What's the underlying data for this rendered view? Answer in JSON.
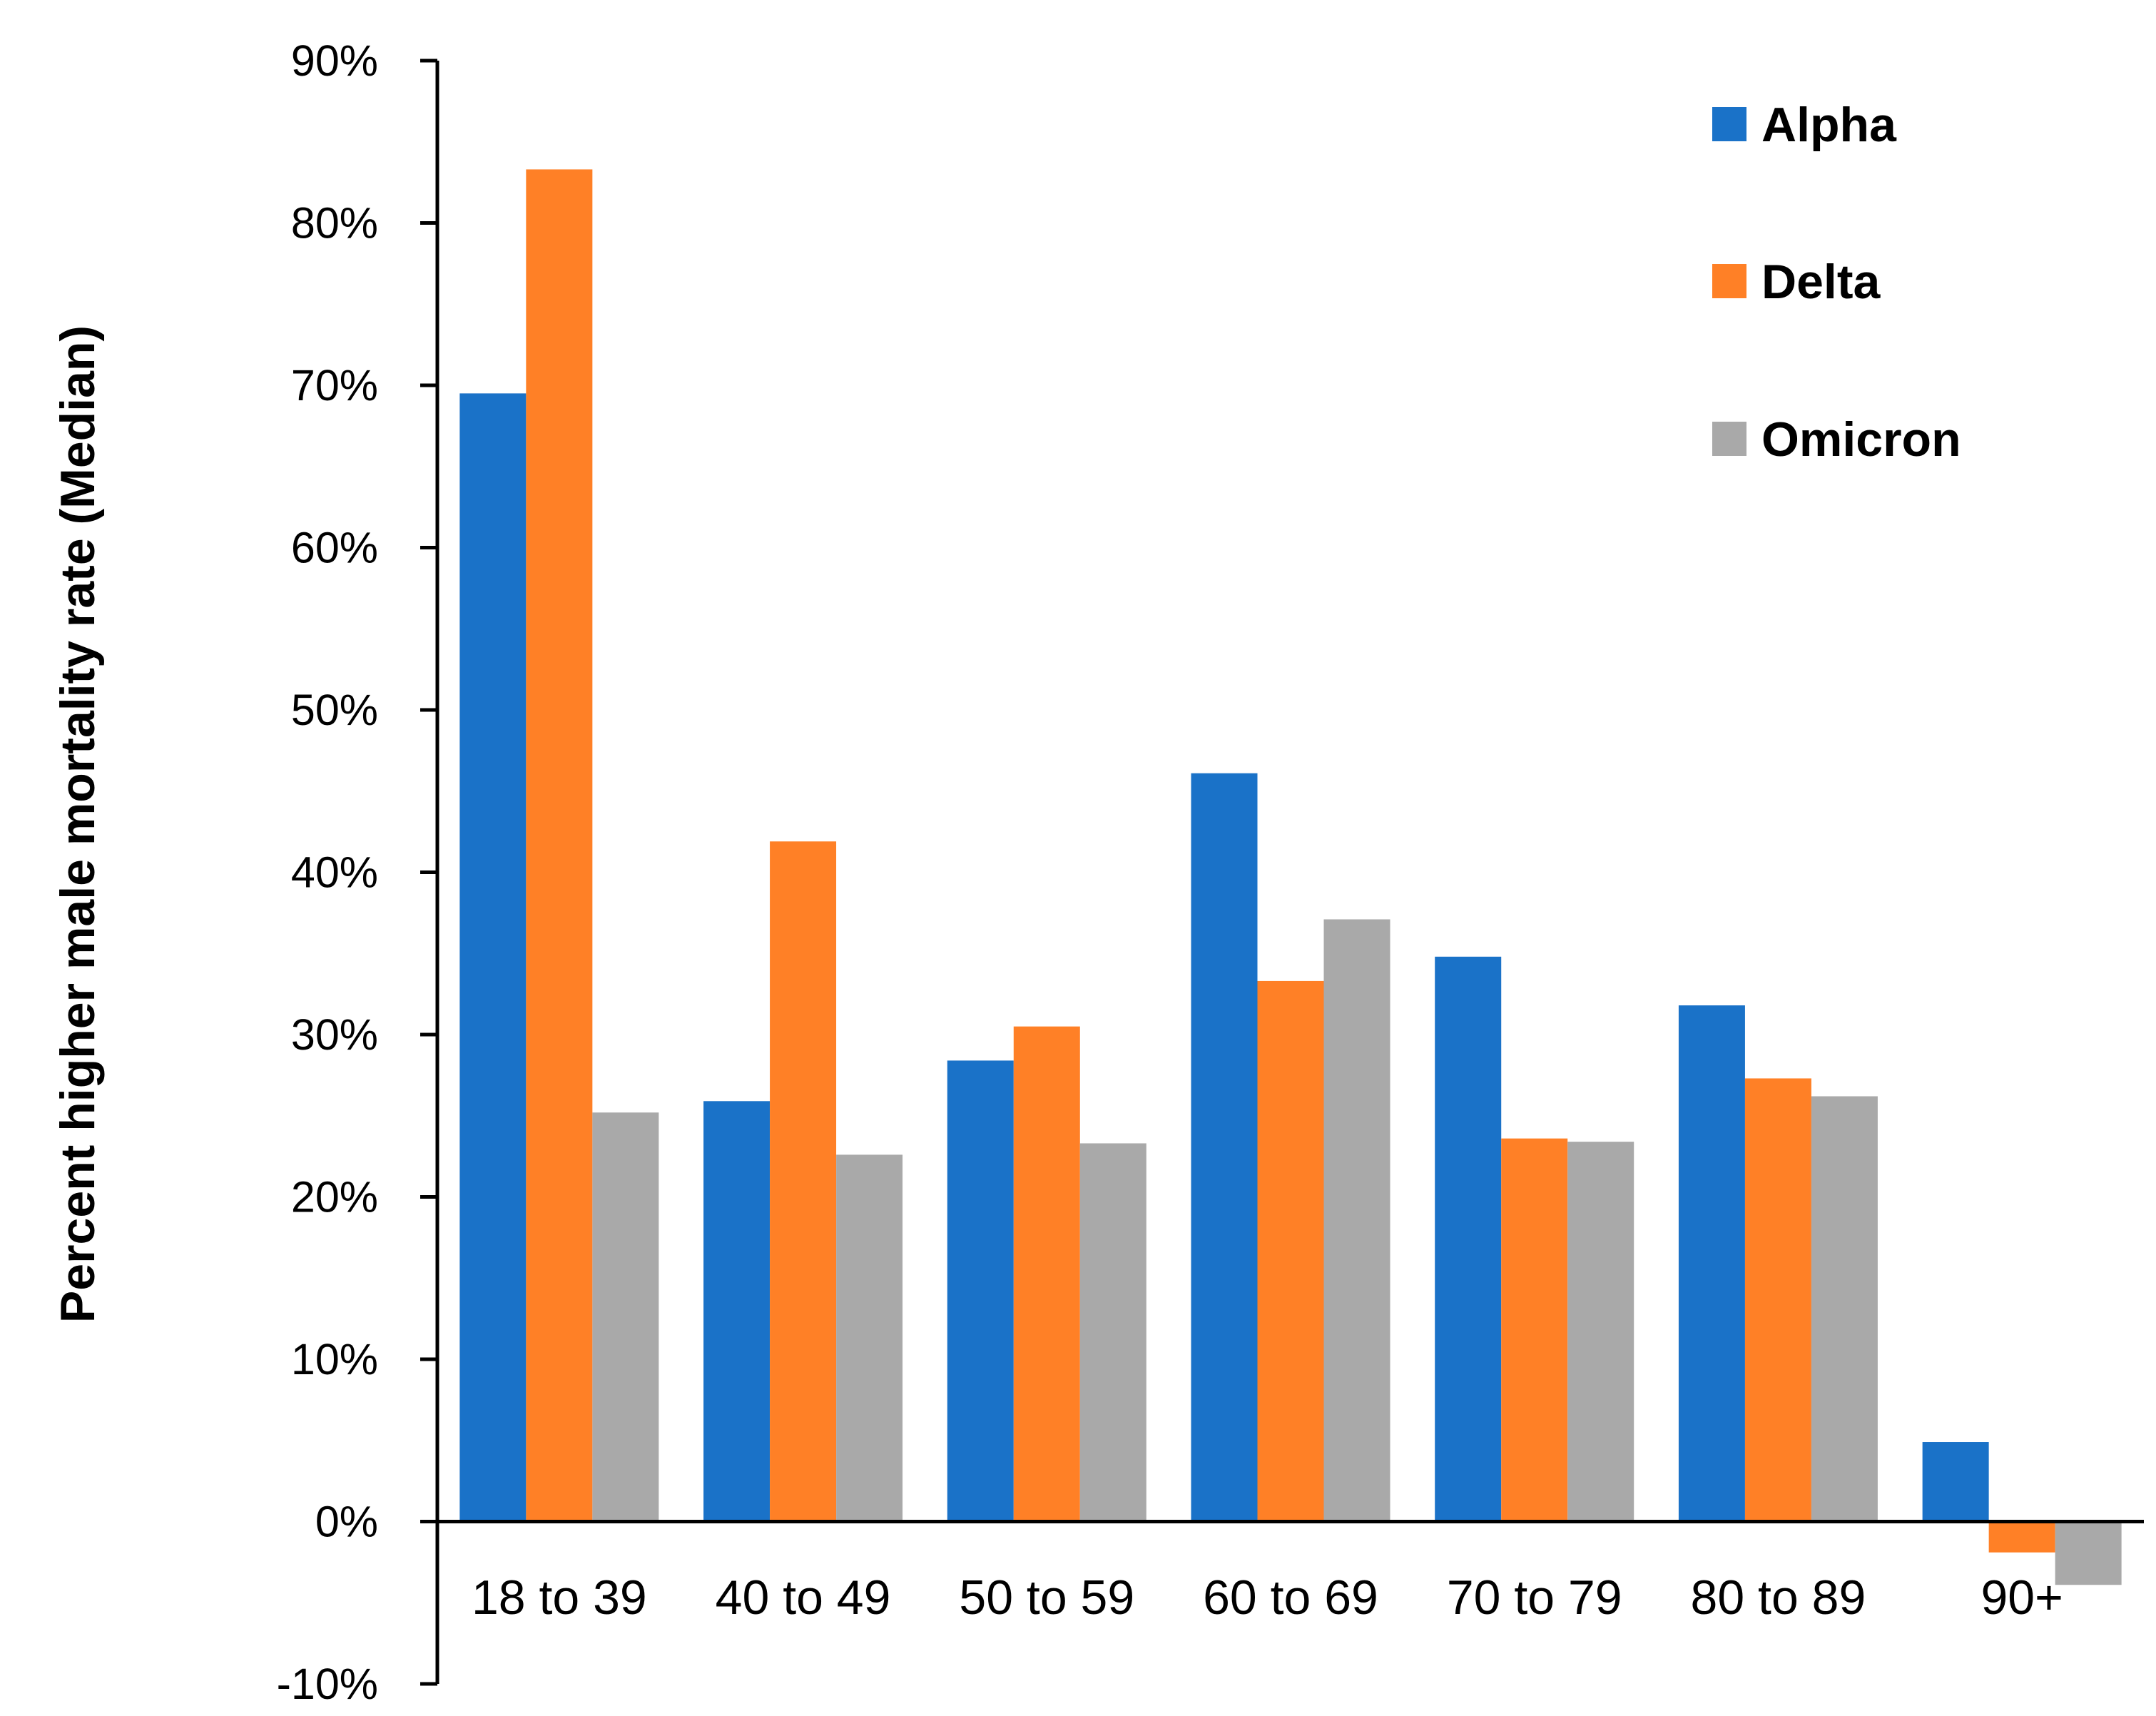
{
  "chart_data": {
    "type": "bar",
    "ylabel": "Percent higher male mortality rate (Median)",
    "xlabel": "",
    "categories": [
      "18 to 39",
      "40 to 49",
      "50 to 59",
      "60 to 69",
      "70 to 79",
      "80 to 89",
      "90+"
    ],
    "series": [
      {
        "name": "Alpha",
        "color": "#1A72C8",
        "values": [
          0.695,
          0.259,
          0.284,
          0.461,
          0.348,
          0.318,
          0.049
        ]
      },
      {
        "name": "Delta",
        "color": "#FF8026",
        "values": [
          0.833,
          0.419,
          0.305,
          0.333,
          0.236,
          0.273,
          -0.019
        ]
      },
      {
        "name": "Omicron",
        "color": "#A9A9A9",
        "values": [
          0.252,
          0.226,
          0.233,
          0.371,
          0.234,
          0.262,
          -0.039
        ]
      }
    ],
    "ylim": [
      -0.1,
      0.9
    ],
    "yticks": [
      -0.1,
      0,
      0.1,
      0.2,
      0.3,
      0.4,
      0.5,
      0.6,
      0.7,
      0.8,
      0.9
    ],
    "ytick_labels": [
      "-10%",
      "0%",
      "10%",
      "20%",
      "30%",
      "40%",
      "50%",
      "60%",
      "70%",
      "80%",
      "90%"
    ],
    "grid": false,
    "legend_position": "top-right"
  }
}
